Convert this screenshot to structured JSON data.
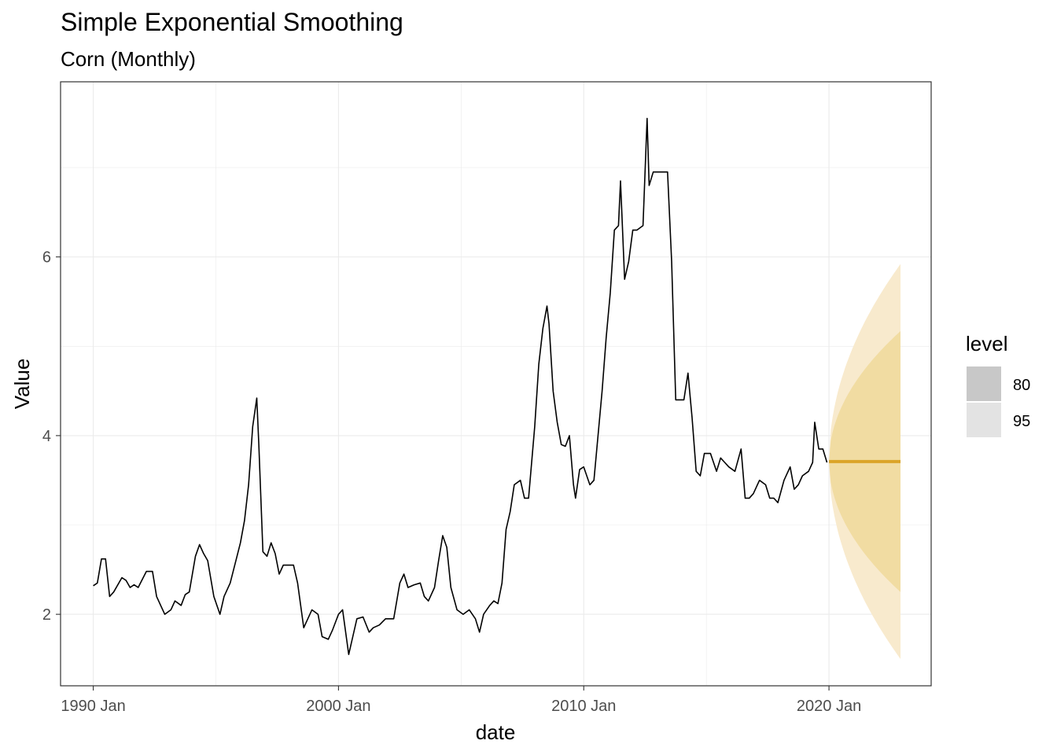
{
  "chart_data": {
    "type": "line",
    "title": "Simple Exponential Smoothing",
    "subtitle": "Corn (Monthly)",
    "xlabel": "date",
    "ylabel": "Value",
    "x_ticks": [
      "1990 Jan",
      "2000 Jan",
      "2010 Jan",
      "2020 Jan"
    ],
    "y_ticks": [
      2,
      4,
      6
    ],
    "xlim": [
      "1988-09",
      "2024-03"
    ],
    "ylim": [
      1.2,
      7.96
    ],
    "grid": true,
    "legend": {
      "title": "level",
      "position": "right",
      "entries": [
        "80",
        "95"
      ]
    },
    "series": [
      {
        "points": [
          [
            "1990-01",
            2.32
          ],
          [
            "1990-03",
            2.35
          ],
          [
            "1990-05",
            2.62
          ],
          [
            "1990-07",
            2.62
          ],
          [
            "1990-09",
            2.2
          ],
          [
            "1990-11",
            2.25
          ],
          [
            "1991-03",
            2.41
          ],
          [
            "1991-05",
            2.38
          ],
          [
            "1991-07",
            2.3
          ],
          [
            "1991-09",
            2.33
          ],
          [
            "1991-11",
            2.3
          ],
          [
            "1992-03",
            2.48
          ],
          [
            "1992-06",
            2.48
          ],
          [
            "1992-08",
            2.2
          ],
          [
            "1992-10",
            2.1
          ],
          [
            "1992-12",
            2.0
          ],
          [
            "1993-03",
            2.05
          ],
          [
            "1993-05",
            2.15
          ],
          [
            "1993-08",
            2.1
          ],
          [
            "1993-10",
            2.22
          ],
          [
            "1993-12",
            2.25
          ],
          [
            "1994-03",
            2.65
          ],
          [
            "1994-05",
            2.78
          ],
          [
            "1994-07",
            2.68
          ],
          [
            "1994-09",
            2.6
          ],
          [
            "1994-12",
            2.2
          ],
          [
            "1995-03",
            2.0
          ],
          [
            "1995-05",
            2.2
          ],
          [
            "1995-08",
            2.35
          ],
          [
            "1995-11",
            2.62
          ],
          [
            "1996-01",
            2.8
          ],
          [
            "1996-03",
            3.05
          ],
          [
            "1996-05",
            3.45
          ],
          [
            "1996-07",
            4.1
          ],
          [
            "1996-09",
            4.42
          ],
          [
            "1996-10",
            3.9
          ],
          [
            "1996-12",
            2.7
          ],
          [
            "1997-02",
            2.65
          ],
          [
            "1997-04",
            2.8
          ],
          [
            "1997-06",
            2.68
          ],
          [
            "1997-08",
            2.45
          ],
          [
            "1997-10",
            2.55
          ],
          [
            "1997-12",
            2.55
          ],
          [
            "1998-03",
            2.55
          ],
          [
            "1998-05",
            2.35
          ],
          [
            "1998-08",
            1.85
          ],
          [
            "1998-10",
            1.95
          ],
          [
            "1998-12",
            2.05
          ],
          [
            "1999-03",
            2.0
          ],
          [
            "1999-05",
            1.75
          ],
          [
            "1999-08",
            1.72
          ],
          [
            "1999-10",
            1.82
          ],
          [
            "2000-01",
            2.0
          ],
          [
            "2000-03",
            2.05
          ],
          [
            "2000-06",
            1.55
          ],
          [
            "2000-08",
            1.75
          ],
          [
            "2000-10",
            1.95
          ],
          [
            "2001-01",
            1.97
          ],
          [
            "2001-04",
            1.8
          ],
          [
            "2001-06",
            1.85
          ],
          [
            "2001-09",
            1.88
          ],
          [
            "2001-12",
            1.95
          ],
          [
            "2002-04",
            1.95
          ],
          [
            "2002-07",
            2.35
          ],
          [
            "2002-09",
            2.45
          ],
          [
            "2002-11",
            2.3
          ],
          [
            "2003-02",
            2.33
          ],
          [
            "2003-05",
            2.35
          ],
          [
            "2003-07",
            2.2
          ],
          [
            "2003-09",
            2.15
          ],
          [
            "2003-12",
            2.3
          ],
          [
            "2004-02",
            2.6
          ],
          [
            "2004-04",
            2.88
          ],
          [
            "2004-06",
            2.75
          ],
          [
            "2004-08",
            2.3
          ],
          [
            "2004-11",
            2.05
          ],
          [
            "2005-02",
            2.0
          ],
          [
            "2005-05",
            2.05
          ],
          [
            "2005-08",
            1.95
          ],
          [
            "2005-10",
            1.8
          ],
          [
            "2005-12",
            2.0
          ],
          [
            "2006-03",
            2.1
          ],
          [
            "2006-05",
            2.15
          ],
          [
            "2006-07",
            2.12
          ],
          [
            "2006-09",
            2.35
          ],
          [
            "2006-11",
            2.95
          ],
          [
            "2007-01",
            3.15
          ],
          [
            "2007-03",
            3.45
          ],
          [
            "2007-06",
            3.5
          ],
          [
            "2007-08",
            3.3
          ],
          [
            "2007-10",
            3.3
          ],
          [
            "2008-01",
            4.1
          ],
          [
            "2008-03",
            4.8
          ],
          [
            "2008-05",
            5.2
          ],
          [
            "2008-07",
            5.45
          ],
          [
            "2008-08",
            5.25
          ],
          [
            "2008-10",
            4.5
          ],
          [
            "2008-12",
            4.15
          ],
          [
            "2009-02",
            3.9
          ],
          [
            "2009-04",
            3.88
          ],
          [
            "2009-06",
            4.0
          ],
          [
            "2009-08",
            3.45
          ],
          [
            "2009-09",
            3.3
          ],
          [
            "2009-11",
            3.62
          ],
          [
            "2010-01",
            3.65
          ],
          [
            "2010-04",
            3.45
          ],
          [
            "2010-06",
            3.5
          ],
          [
            "2010-08",
            4.0
          ],
          [
            "2010-10",
            4.5
          ],
          [
            "2010-12",
            5.1
          ],
          [
            "2011-02",
            5.6
          ],
          [
            "2011-04",
            6.3
          ],
          [
            "2011-06",
            6.35
          ],
          [
            "2011-07",
            6.85
          ],
          [
            "2011-09",
            5.75
          ],
          [
            "2011-11",
            5.95
          ],
          [
            "2012-01",
            6.3
          ],
          [
            "2012-03",
            6.3
          ],
          [
            "2012-06",
            6.35
          ],
          [
            "2012-08",
            7.55
          ],
          [
            "2012-09",
            6.8
          ],
          [
            "2012-11",
            6.95
          ],
          [
            "2013-02",
            6.95
          ],
          [
            "2013-04",
            6.95
          ],
          [
            "2013-06",
            6.95
          ],
          [
            "2013-08",
            5.95
          ],
          [
            "2013-10",
            4.4
          ],
          [
            "2013-12",
            4.4
          ],
          [
            "2014-02",
            4.4
          ],
          [
            "2014-04",
            4.7
          ],
          [
            "2014-06",
            4.2
          ],
          [
            "2014-08",
            3.6
          ],
          [
            "2014-10",
            3.55
          ],
          [
            "2014-12",
            3.8
          ],
          [
            "2015-03",
            3.8
          ],
          [
            "2015-06",
            3.6
          ],
          [
            "2015-08",
            3.75
          ],
          [
            "2015-10",
            3.7
          ],
          [
            "2015-12",
            3.65
          ],
          [
            "2016-03",
            3.6
          ],
          [
            "2016-06",
            3.85
          ],
          [
            "2016-08",
            3.3
          ],
          [
            "2016-10",
            3.3
          ],
          [
            "2016-12",
            3.35
          ],
          [
            "2017-03",
            3.5
          ],
          [
            "2017-06",
            3.45
          ],
          [
            "2017-08",
            3.3
          ],
          [
            "2017-10",
            3.3
          ],
          [
            "2017-12",
            3.25
          ],
          [
            "2018-03",
            3.5
          ],
          [
            "2018-06",
            3.65
          ],
          [
            "2018-08",
            3.4
          ],
          [
            "2018-10",
            3.45
          ],
          [
            "2018-12",
            3.55
          ],
          [
            "2019-03",
            3.6
          ],
          [
            "2019-05",
            3.7
          ],
          [
            "2019-06",
            4.15
          ],
          [
            "2019-08",
            3.85
          ],
          [
            "2019-10",
            3.85
          ],
          [
            "2019-12",
            3.7
          ]
        ],
        "color": "#000000"
      }
    ],
    "forecast": {
      "start": "2020-01",
      "end": "2022-12",
      "value": 3.71,
      "lower_80": [
        3.71,
        2.25
      ],
      "upper_80": [
        3.71,
        5.17
      ],
      "lower_95": [
        3.71,
        1.5
      ],
      "upper_95": [
        3.71,
        5.92
      ],
      "line_color": "#dba428",
      "band_80_color": "#f1dca2",
      "band_95_color": "#f8eacd"
    },
    "colors": {
      "grid": "#ebebeb",
      "panel_border": "#333333",
      "legend_80": "#c8c8c8",
      "legend_95": "#e3e3e3"
    }
  }
}
